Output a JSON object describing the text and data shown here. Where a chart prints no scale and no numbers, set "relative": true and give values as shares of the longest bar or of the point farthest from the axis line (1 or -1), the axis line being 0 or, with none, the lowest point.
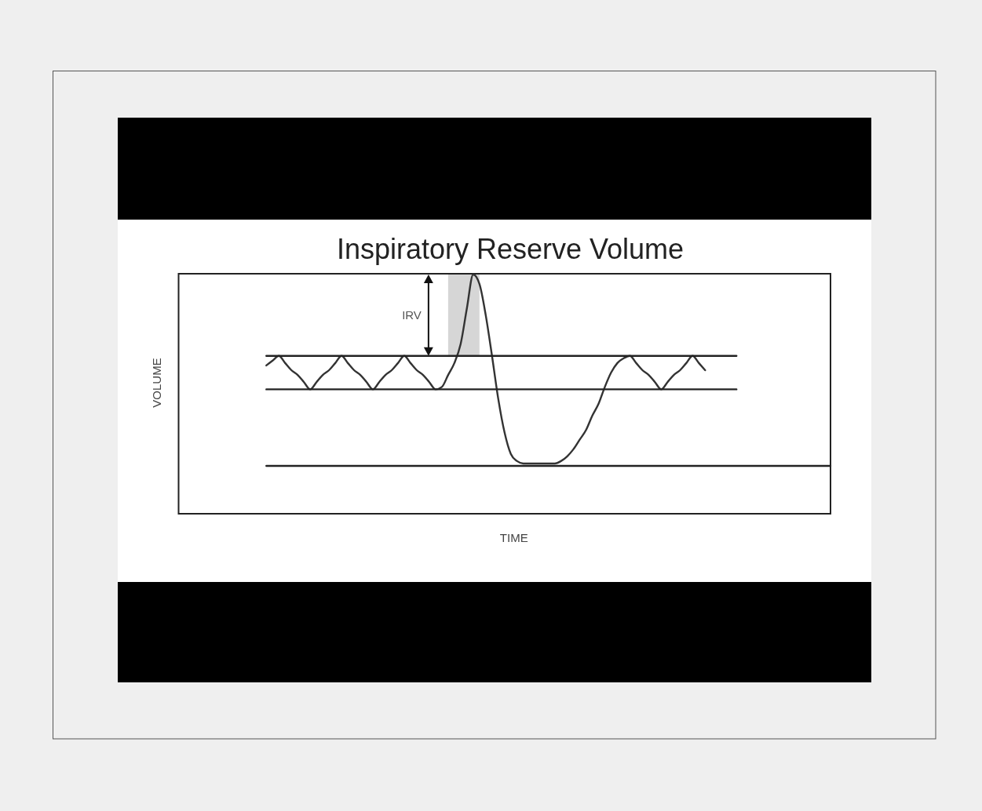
{
  "chart_data": {
    "type": "line",
    "relative": true,
    "title": "Inspiratory Reserve Volume",
    "xlabel": "TIME",
    "ylabel": "VOLUME",
    "annotations": [
      "IRV"
    ],
    "categories": [
      null,
      null,
      null,
      null,
      null,
      null,
      null,
      null,
      null,
      null,
      null,
      null,
      null,
      null,
      null,
      null,
      null,
      null,
      null,
      null,
      null,
      null,
      null,
      null,
      null,
      null,
      null,
      null,
      null,
      null,
      null,
      null,
      null,
      null,
      null,
      null,
      null,
      null,
      null,
      null,
      null,
      null,
      null,
      null,
      null,
      null,
      null,
      null,
      null,
      null,
      null,
      null,
      null,
      null,
      null,
      null,
      null,
      null,
      null,
      null,
      null,
      null,
      null,
      null,
      null,
      null,
      null,
      null,
      null,
      null,
      null,
      null,
      null,
      null,
      null,
      null,
      null,
      null,
      null,
      null,
      null,
      null,
      null,
      null,
      null,
      null,
      null,
      null,
      null,
      null,
      null,
      null,
      null,
      null,
      null,
      null,
      null,
      null,
      null,
      null,
      null,
      null,
      null,
      null,
      null
    ],
    "series": [
      {
        "color": "#333333",
        "values": [
          null,
          null,
          null,
          null,
          null,
          null,
          null,
          null,
          null,
          null,
          null,
          null,
          null,
          null,
          0.62,
          0.64,
          0.66,
          0.63,
          0.6,
          0.58,
          0.55,
          0.52,
          0.55,
          0.58,
          0.6,
          0.63,
          0.66,
          0.63,
          0.6,
          0.58,
          0.55,
          0.52,
          0.55,
          0.58,
          0.6,
          0.63,
          0.66,
          0.63,
          0.6,
          0.58,
          0.55,
          0.52,
          0.53,
          0.58,
          0.63,
          0.71,
          0.86,
          1,
          0.96,
          0.83,
          0.66,
          0.48,
          0.34,
          0.25,
          0.22,
          0.21,
          0.21,
          0.21,
          0.21,
          0.21,
          0.21,
          0.22,
          0.24,
          0.27,
          0.31,
          0.35,
          0.41,
          0.46,
          0.53,
          0.59,
          0.63,
          0.65,
          0.66,
          0.63,
          0.6,
          0.58,
          0.55,
          0.52,
          0.55,
          0.58,
          0.6,
          0.63,
          0.66,
          0.63,
          0.6,
          null,
          null,
          null,
          null,
          null,
          null,
          null,
          null,
          null,
          null,
          null,
          null,
          null,
          null,
          null,
          null,
          null,
          null,
          null,
          null
        ],
        "lower": [
          null,
          null,
          null,
          null,
          null,
          null,
          null,
          null,
          null,
          null,
          null,
          null,
          null,
          null,
          null,
          null,
          null,
          null,
          null,
          null,
          null,
          null,
          null,
          null,
          null,
          null,
          null,
          null,
          null,
          null,
          null,
          null,
          null,
          null,
          null,
          null,
          null,
          null,
          null,
          null,
          null,
          null,
          null,
          0.66,
          0.66,
          0.66,
          0.66,
          0.66,
          0.66,
          null,
          null,
          null,
          null,
          null,
          null,
          null,
          null,
          null,
          null,
          null,
          null,
          null,
          null,
          null,
          null,
          null,
          null,
          null,
          null,
          null,
          null,
          null,
          null,
          null,
          null,
          null,
          null,
          null,
          null,
          null,
          null,
          null,
          null,
          null,
          null,
          null,
          null,
          null,
          null,
          null,
          null,
          null,
          null,
          null,
          null,
          null,
          null,
          null,
          null,
          null,
          null,
          null,
          null,
          null,
          null
        ],
        "upper": [
          null,
          null,
          null,
          null,
          null,
          null,
          null,
          null,
          null,
          null,
          null,
          null,
          null,
          null,
          null,
          null,
          null,
          null,
          null,
          null,
          null,
          null,
          null,
          null,
          null,
          null,
          null,
          null,
          null,
          null,
          null,
          null,
          null,
          null,
          null,
          null,
          null,
          null,
          null,
          null,
          null,
          null,
          null,
          1,
          1,
          1,
          1,
          1,
          1,
          null,
          null,
          null,
          null,
          null,
          null,
          null,
          null,
          null,
          null,
          null,
          null,
          null,
          null,
          null,
          null,
          null,
          null,
          null,
          null,
          null,
          null,
          null,
          null,
          null,
          null,
          null,
          null,
          null,
          null,
          null,
          null,
          null,
          null,
          null,
          null,
          null,
          null,
          null,
          null,
          null,
          null,
          null,
          null,
          null,
          null,
          null,
          null,
          null,
          null,
          null,
          null,
          null,
          null,
          null,
          null
        ]
      },
      {
        "color": "#222222",
        "values": [
          null,
          null,
          null,
          null,
          null,
          null,
          null,
          null,
          null,
          null,
          null,
          null,
          null,
          null,
          0.66,
          0.66,
          0.66,
          0.66,
          0.66,
          0.66,
          0.66,
          0.66,
          0.66,
          0.66,
          0.66,
          0.66,
          0.66,
          0.66,
          0.66,
          0.66,
          0.66,
          0.66,
          0.66,
          0.66,
          0.66,
          0.66,
          0.66,
          0.66,
          0.66,
          0.66,
          0.66,
          0.66,
          0.66,
          0.66,
          0.66,
          0.66,
          0.66,
          0.66,
          0.66,
          0.66,
          0.66,
          0.66,
          0.66,
          0.66,
          0.66,
          0.66,
          0.66,
          0.66,
          0.66,
          0.66,
          0.66,
          0.66,
          0.66,
          0.66,
          0.66,
          0.66,
          0.66,
          0.66,
          0.66,
          0.66,
          0.66,
          0.66,
          0.66,
          0.66,
          0.66,
          0.66,
          0.66,
          0.66,
          0.66,
          0.66,
          0.66,
          0.66,
          0.66,
          0.66,
          0.66,
          0.66,
          0.66,
          0.66,
          0.66,
          0.66,
          null,
          null,
          null,
          null,
          null,
          null,
          null,
          null,
          null,
          null,
          null,
          null,
          null,
          null,
          null
        ]
      },
      {
        "color": "#222222",
        "values": [
          null,
          null,
          null,
          null,
          null,
          null,
          null,
          null,
          null,
          null,
          null,
          null,
          null,
          null,
          0.52,
          0.52,
          0.52,
          0.52,
          0.52,
          0.52,
          0.52,
          0.52,
          0.52,
          0.52,
          0.52,
          0.52,
          0.52,
          0.52,
          0.52,
          0.52,
          0.52,
          0.52,
          0.52,
          0.52,
          0.52,
          0.52,
          0.52,
          0.52,
          0.52,
          0.52,
          0.52,
          0.52,
          0.52,
          0.52,
          0.52,
          0.52,
          0.52,
          0.52,
          0.52,
          0.52,
          0.52,
          0.52,
          0.52,
          0.52,
          0.52,
          0.52,
          0.52,
          0.52,
          0.52,
          0.52,
          0.52,
          0.52,
          0.52,
          0.52,
          0.52,
          0.52,
          0.52,
          0.52,
          0.52,
          0.52,
          0.52,
          0.52,
          0.52,
          0.52,
          0.52,
          0.52,
          0.52,
          0.52,
          0.52,
          0.52,
          0.52,
          0.52,
          0.52,
          0.52,
          0.52,
          0.52,
          0.52,
          0.52,
          0.52,
          0.52,
          null,
          null,
          null,
          null,
          null,
          null,
          null,
          null,
          null,
          null,
          null,
          null,
          null,
          null,
          null
        ]
      },
      {
        "color": "#222222",
        "values": [
          null,
          null,
          null,
          null,
          null,
          null,
          null,
          null,
          null,
          null,
          null,
          null,
          null,
          null,
          0.2,
          0.2,
          0.2,
          0.2,
          0.2,
          0.2,
          0.2,
          0.2,
          0.2,
          0.2,
          0.2,
          0.2,
          0.2,
          0.2,
          0.2,
          0.2,
          0.2,
          0.2,
          0.2,
          0.2,
          0.2,
          0.2,
          0.2,
          0.2,
          0.2,
          0.2,
          0.2,
          0.2,
          0.2,
          0.2,
          0.2,
          0.2,
          0.2,
          0.2,
          0.2,
          0.2,
          0.2,
          0.2,
          0.2,
          0.2,
          0.2,
          0.2,
          0.2,
          0.2,
          0.2,
          0.2,
          0.2,
          0.2,
          0.2,
          0.2,
          0.2,
          0.2,
          0.2,
          0.2,
          0.2,
          0.2,
          0.2,
          0.2,
          0.2,
          0.2,
          0.2,
          0.2,
          0.2,
          0.2,
          0.2,
          0.2,
          0.2,
          0.2,
          0.2,
          0.2,
          0.2,
          0.2,
          0.2,
          0.2,
          0.2,
          0.2,
          0.2,
          0.2,
          0.2,
          0.2,
          0.2,
          0.2,
          0.2,
          0.2,
          0.2,
          0.2,
          0.2,
          0.2,
          0.2,
          0.2,
          0.2
        ]
      }
    ]
  }
}
